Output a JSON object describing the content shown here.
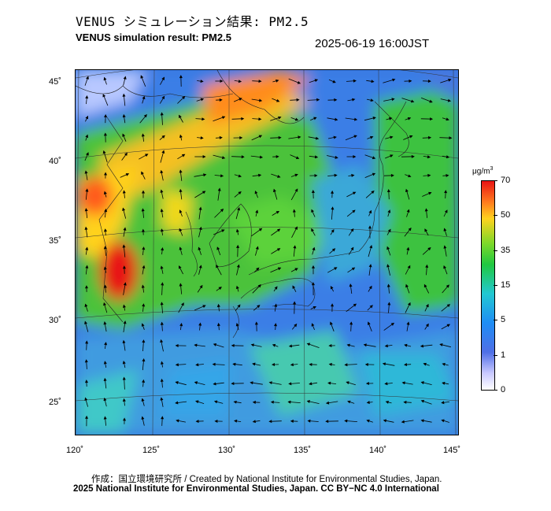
{
  "header": {
    "title_jp": "VENUS シミュレーション結果: PM2.5",
    "title_en": "VENUS simulation result: PM2.5",
    "timestamp": "2025-06-19 16:00JST"
  },
  "map": {
    "latitude_labels": [
      "45˚",
      "40˚",
      "35˚",
      "30˚",
      "25˚"
    ],
    "longitude_labels": [
      "120˚",
      "125˚",
      "130˚",
      "135˚",
      "140˚",
      "145˚"
    ],
    "field": "PM2.5 concentration with wind vectors"
  },
  "colorbar": {
    "unit_main": "μg/m",
    "unit_sup": "3",
    "labels": [
      "70",
      "50",
      "35",
      "15",
      "5",
      "1",
      "0"
    ],
    "colors": {
      "high": "#e81414",
      "upper": "#ff7a1e",
      "mid_high": "#ffd21e",
      "mid": "#20c840",
      "low": "#22c8d2",
      "lower": "#1f8df5",
      "very_low": "#c8c8ff",
      "zero": "#ffffff"
    }
  },
  "footer": {
    "credit_line1": "作成：国立環境研究所 / Created by National Institute for Environmental Studies, Japan.",
    "credit_line2": "2025 National Institute for Environmental Studies, Japan. CC BY−NC 4.0 International"
  }
}
